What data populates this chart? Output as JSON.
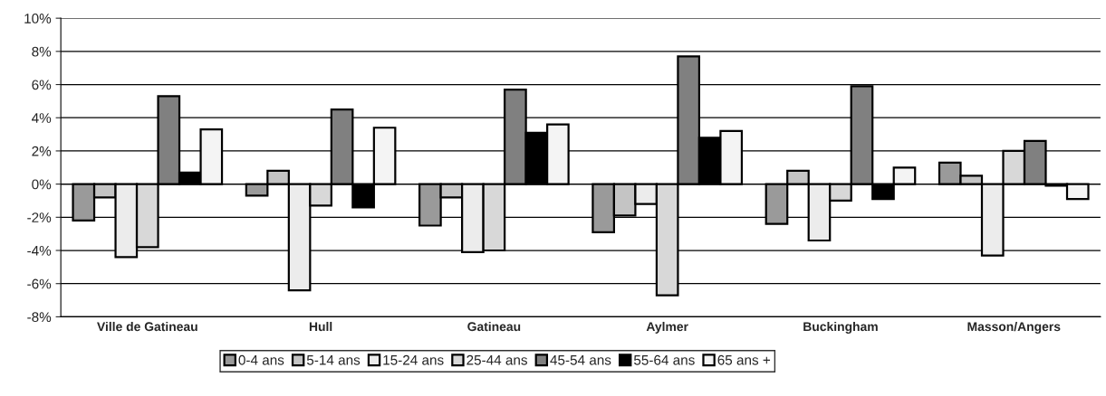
{
  "chart_data": {
    "type": "bar",
    "categories": [
      "Ville de Gatineau",
      "Hull",
      "Gatineau",
      "Aylmer",
      "Buckingham",
      "Masson/Angers"
    ],
    "series": [
      {
        "name": "0-4 ans",
        "color": "#9a9a9a",
        "values": [
          -2.2,
          -0.7,
          -2.5,
          -2.9,
          -2.4,
          1.3
        ]
      },
      {
        "name": "5-14 ans",
        "color": "#c4c4c4",
        "values": [
          -0.8,
          0.8,
          -0.8,
          -1.9,
          0.8,
          0.5
        ]
      },
      {
        "name": "15-24 ans",
        "color": "#ececec",
        "values": [
          -4.4,
          -6.4,
          -4.1,
          -1.2,
          -3.4,
          -4.3
        ]
      },
      {
        "name": "25-44 ans",
        "color": "#d8d8d8",
        "values": [
          -3.8,
          -1.3,
          -4.0,
          -6.7,
          -1.0,
          2.0
        ]
      },
      {
        "name": "45-54 ans",
        "color": "#808080",
        "values": [
          5.3,
          4.5,
          5.7,
          7.7,
          5.9,
          2.6
        ]
      },
      {
        "name": "55-64 ans",
        "color": "#000000",
        "values": [
          0.7,
          -1.4,
          3.1,
          2.8,
          -0.9,
          -0.1
        ]
      },
      {
        "name": "65 ans +",
        "color": "#f4f4f4",
        "values": [
          3.3,
          3.4,
          3.6,
          3.2,
          1.0,
          -0.9
        ]
      }
    ],
    "ylim": [
      -8,
      10
    ],
    "yticks": [
      {
        "value": -8,
        "label": "-8%"
      },
      {
        "value": -6,
        "label": "-6%"
      },
      {
        "value": -4,
        "label": "-4%"
      },
      {
        "value": -2,
        "label": "-2%"
      },
      {
        "value": 0,
        "label": "0%"
      },
      {
        "value": 2,
        "label": "2%"
      },
      {
        "value": 4,
        "label": "4%"
      },
      {
        "value": 6,
        "label": "6%"
      },
      {
        "value": 8,
        "label": "8%"
      },
      {
        "value": 10,
        "label": "10%"
      }
    ],
    "grid": "y",
    "legend": "bottom"
  }
}
